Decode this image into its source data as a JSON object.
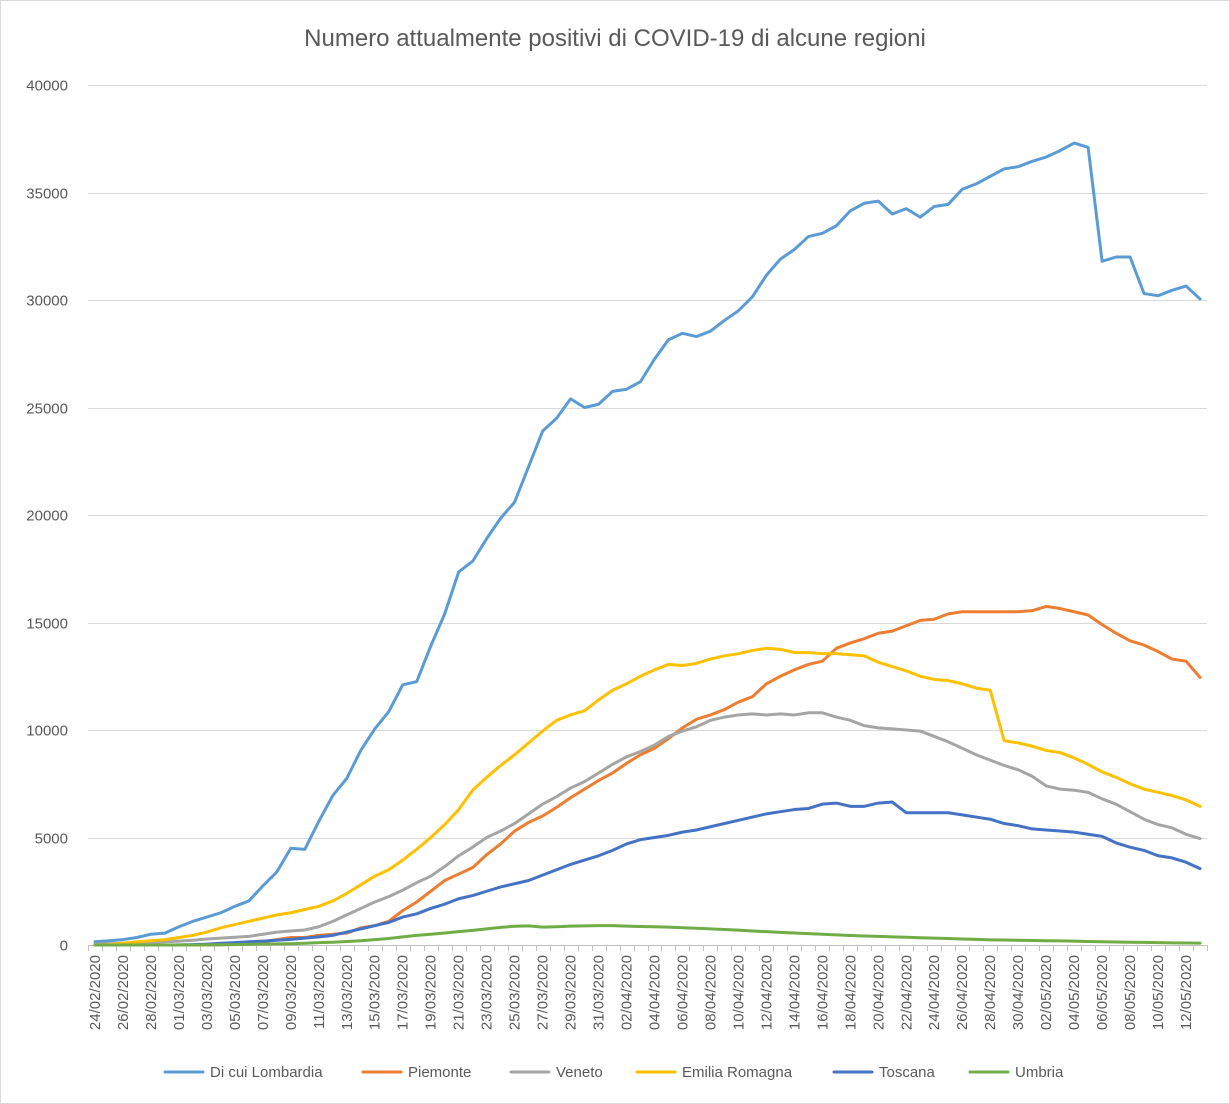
{
  "chart_data": {
    "type": "line",
    "title": "Numero attualmente positivi di COVID-19 di alcune regioni",
    "xlabel": "",
    "ylabel": "",
    "ylim": [
      0,
      40000
    ],
    "yticks": [
      0,
      5000,
      10000,
      15000,
      20000,
      25000,
      30000,
      35000,
      40000
    ],
    "grid": "horizontal",
    "legend_position": "bottom",
    "x_start": "24/02/2020",
    "x_count": 80,
    "x_tick_labels": [
      "24/02/2020",
      "26/02/2020",
      "28/02/2020",
      "01/03/2020",
      "03/03/2020",
      "05/03/2020",
      "07/03/2020",
      "09/03/2020",
      "11/03/2020",
      "13/03/2020",
      "15/03/2020",
      "17/03/2020",
      "19/03/2020",
      "21/03/2020",
      "23/03/2020",
      "25/03/2020",
      "27/03/2020",
      "29/03/2020",
      "31/03/2020",
      "02/04/2020",
      "04/04/2020",
      "06/04/2020",
      "08/04/2020",
      "10/04/2020",
      "12/04/2020",
      "14/04/2020",
      "16/04/2020",
      "18/04/2020",
      "20/04/2020",
      "22/04/2020",
      "24/04/2020",
      "26/04/2020",
      "28/04/2020",
      "30/04/2020",
      "02/05/2020",
      "04/05/2020",
      "06/05/2020",
      "08/05/2020",
      "10/05/2020",
      "12/05/2020"
    ],
    "series": [
      {
        "name": "Di cui Lombardia",
        "color": "#5B9BD5",
        "values": [
          150,
          200,
          250,
          350,
          500,
          550,
          850,
          1100,
          1300,
          1500,
          1800,
          2050,
          2750,
          3400,
          4500,
          4450,
          5750,
          6950,
          7750,
          9050,
          10050,
          10850,
          12100,
          12250,
          13900,
          15400,
          17350,
          17850,
          18900,
          19850,
          20600,
          22250,
          23900,
          24500,
          25400,
          25000,
          25150,
          25750,
          25850,
          26200,
          27250,
          28150,
          28450,
          28300,
          28550,
          29050,
          29500,
          30150,
          31150,
          31900,
          32350,
          32950,
          33100,
          33450,
          34150,
          34500,
          34600,
          34000,
          34250,
          33850,
          34350,
          34450,
          35150,
          35400,
          35750,
          36100,
          36200,
          36450,
          36650,
          36950,
          37300,
          37100,
          31800,
          32000,
          32000,
          30300,
          30200,
          30450,
          30650,
          30050
        ]
      },
      {
        "name": "Piemonte",
        "color": "#ED7D31",
        "values": [
          0,
          0,
          0,
          0,
          0,
          0,
          0,
          0,
          0,
          10,
          30,
          60,
          150,
          250,
          350,
          350,
          450,
          500,
          550,
          800,
          900,
          1100,
          1600,
          2000,
          2500,
          3000,
          3300,
          3600,
          4200,
          4700,
          5300,
          5700,
          6000,
          6400,
          6850,
          7250,
          7650,
          8000,
          8450,
          8850,
          9150,
          9600,
          10100,
          10500,
          10700,
          10950,
          11300,
          11550,
          12150,
          12500,
          12800,
          13050,
          13200,
          13800,
          14050,
          14250,
          14500,
          14600,
          14850,
          15100,
          15150,
          15400,
          15500,
          15500,
          15500,
          15500,
          15500,
          15550,
          15750,
          15650,
          15500,
          15350,
          14900,
          14500,
          14150,
          13950,
          13650,
          13300,
          13200,
          12450
        ]
      },
      {
        "name": "Veneto",
        "color": "#A5A5A5",
        "values": [
          40,
          60,
          80,
          100,
          120,
          150,
          180,
          220,
          280,
          320,
          360,
          400,
          500,
          600,
          650,
          700,
          850,
          1100,
          1400,
          1700,
          2000,
          2250,
          2550,
          2900,
          3200,
          3650,
          4150,
          4550,
          5000,
          5300,
          5650,
          6100,
          6550,
          6900,
          7300,
          7600,
          8000,
          8400,
          8750,
          9000,
          9300,
          9700,
          9950,
          10150,
          10450,
          10600,
          10700,
          10750,
          10700,
          10750,
          10700,
          10800,
          10800,
          10600,
          10450,
          10200,
          10100,
          10050,
          10000,
          9950,
          9700,
          9450,
          9150,
          8850,
          8600,
          8350,
          8150,
          7850,
          7400,
          7250,
          7200,
          7100,
          6800,
          6550,
          6200,
          5850,
          5600,
          5450,
          5150,
          4950
        ]
      },
      {
        "name": "Emilia Romagna",
        "color": "#FFC000",
        "values": [
          0,
          20,
          80,
          150,
          200,
          250,
          350,
          450,
          600,
          800,
          950,
          1100,
          1250,
          1400,
          1500,
          1650,
          1800,
          2050,
          2400,
          2800,
          3200,
          3500,
          3950,
          4450,
          5000,
          5600,
          6300,
          7200,
          7800,
          8350,
          8850,
          9400,
          9950,
          10450,
          10700,
          10900,
          11400,
          11850,
          12150,
          12500,
          12800,
          13050,
          13000,
          13100,
          13300,
          13450,
          13550,
          13700,
          13800,
          13750,
          13600,
          13600,
          13550,
          13550,
          13500,
          13450,
          13150,
          12950,
          12750,
          12500,
          12350,
          12300,
          12150,
          11950,
          11850,
          9500,
          9400,
          9250,
          9050,
          8950,
          8700,
          8400,
          8050,
          7800,
          7500,
          7250,
          7100,
          6950,
          6750,
          6450
        ]
      },
      {
        "name": "Toscana",
        "color": "#4472C4",
        "values": [
          0,
          0,
          0,
          0,
          0,
          0,
          5,
          20,
          40,
          80,
          110,
          150,
          180,
          220,
          260,
          320,
          380,
          450,
          600,
          750,
          900,
          1050,
          1300,
          1450,
          1700,
          1900,
          2150,
          2300,
          2500,
          2700,
          2850,
          3000,
          3250,
          3500,
          3750,
          3950,
          4150,
          4400,
          4700,
          4900,
          5000,
          5100,
          5250,
          5350,
          5500,
          5650,
          5800,
          5950,
          6100,
          6200,
          6300,
          6350,
          6550,
          6600,
          6450,
          6450,
          6600,
          6650,
          6150,
          6150,
          6150,
          6150,
          6050,
          5950,
          5850,
          5650,
          5550,
          5400,
          5350,
          5300,
          5250,
          5150,
          5050,
          4750,
          4550,
          4400,
          4150,
          4050,
          3850,
          3550
        ]
      },
      {
        "name": "Umbria",
        "color": "#70AD47",
        "values": [
          0,
          0,
          0,
          0,
          0,
          0,
          0,
          0,
          5,
          10,
          20,
          30,
          40,
          50,
          60,
          80,
          110,
          130,
          160,
          200,
          250,
          300,
          380,
          450,
          500,
          560,
          620,
          680,
          750,
          820,
          870,
          890,
          830,
          850,
          880,
          890,
          900,
          900,
          880,
          860,
          850,
          830,
          800,
          780,
          750,
          720,
          690,
          650,
          620,
          590,
          560,
          530,
          500,
          470,
          440,
          420,
          400,
          380,
          360,
          340,
          320,
          300,
          280,
          260,
          240,
          230,
          220,
          210,
          200,
          190,
          180,
          160,
          150,
          140,
          130,
          120,
          110,
          100,
          95,
          90
        ]
      }
    ]
  }
}
